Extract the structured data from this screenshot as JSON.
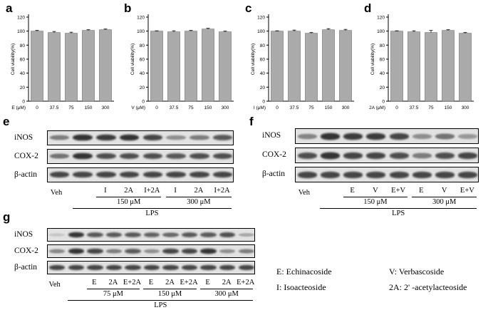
{
  "panels": {
    "a": "a",
    "b": "b",
    "c": "c",
    "d": "d",
    "e": "e",
    "f": "f",
    "g": "g"
  },
  "chart_data": [
    {
      "type": "bar",
      "ylabel": "Cell viability(%)",
      "xlabel": "E (μM)",
      "categories": [
        "0",
        "37.5",
        "75",
        "150",
        "300"
      ],
      "values": [
        100,
        98,
        97,
        101,
        102
      ],
      "errors": [
        1,
        1.5,
        1.5,
        1,
        1
      ],
      "yticks": [
        "0",
        "20",
        "40",
        "60",
        "80",
        "100",
        "120"
      ],
      "ylim": [
        0,
        120
      ]
    },
    {
      "type": "bar",
      "ylabel": "Cell viability(%)",
      "xlabel": "V (μM)",
      "categories": [
        "0",
        "37.5",
        "75",
        "150",
        "300"
      ],
      "values": [
        100,
        99,
        100,
        103,
        99
      ],
      "errors": [
        0.5,
        1.5,
        1,
        1,
        1
      ],
      "yticks": [
        "0",
        "20",
        "40",
        "60",
        "80",
        "100",
        "120"
      ],
      "ylim": [
        0,
        120
      ]
    },
    {
      "type": "bar",
      "ylabel": "Cell viability(%)",
      "xlabel": "I (μM)",
      "categories": [
        "0",
        "37.5",
        "75",
        "150",
        "300"
      ],
      "values": [
        100,
        100,
        97,
        102,
        101
      ],
      "errors": [
        0.5,
        1.5,
        1,
        1.5,
        1.5
      ],
      "yticks": [
        "0",
        "20",
        "40",
        "60",
        "80",
        "100",
        "120"
      ],
      "ylim": [
        0,
        120
      ]
    },
    {
      "type": "bar",
      "ylabel": "Cell viability(%)",
      "xlabel": "2A (μM)",
      "categories": [
        "0",
        "37.5",
        "75",
        "150",
        "300"
      ],
      "values": [
        100,
        99,
        98,
        101,
        97
      ],
      "errors": [
        0.5,
        1.5,
        3,
        1,
        1
      ],
      "yticks": [
        "0",
        "20",
        "40",
        "60",
        "80",
        "100",
        "120"
      ],
      "ylim": [
        0,
        120
      ]
    }
  ],
  "blots": {
    "e": {
      "rows": [
        "iNOS",
        "COX-2",
        "β-actin"
      ],
      "veh": "Veh",
      "lanes": [
        "I",
        "2A",
        "I+2A",
        "I",
        "2A",
        "I+2A"
      ],
      "groups": [
        "150 μM",
        "300 μM"
      ],
      "treatment": "LPS",
      "intensity": [
        [
          0.55,
          0.95,
          0.9,
          0.95,
          0.85,
          0.45,
          0.55,
          0.75
        ],
        [
          0.6,
          0.95,
          0.8,
          0.8,
          0.8,
          0.75,
          0.8,
          0.8
        ],
        [
          0.85,
          0.85,
          0.85,
          0.85,
          0.85,
          0.85,
          0.85,
          0.85
        ]
      ]
    },
    "f": {
      "rows": [
        "iNOS",
        "COX-2",
        "β-actin"
      ],
      "veh": "Veh",
      "lanes": [
        "E",
        "V",
        "E+V",
        "E",
        "V",
        "E+V"
      ],
      "groups": [
        "150 μM",
        "300 μM"
      ],
      "treatment": "LPS",
      "intensity": [
        [
          0.5,
          0.95,
          0.9,
          0.9,
          0.85,
          0.45,
          0.6,
          0.4
        ],
        [
          0.8,
          0.95,
          0.85,
          0.85,
          0.8,
          0.55,
          0.8,
          0.85
        ],
        [
          0.85,
          0.85,
          0.85,
          0.85,
          0.85,
          0.85,
          0.85,
          0.85
        ]
      ]
    },
    "g": {
      "rows": [
        "iNOS",
        "COX-2",
        "β-actin"
      ],
      "veh": "Veh",
      "lanes": [
        "E",
        "2A",
        "E+2A",
        "E",
        "2A",
        "E+2A",
        "E",
        "2A",
        "E+2A"
      ],
      "groups": [
        "75 μM",
        "150 μM",
        "300 μM"
      ],
      "treatment": "LPS",
      "intensity": [
        [
          0.15,
          0.95,
          0.75,
          0.75,
          0.75,
          0.7,
          0.65,
          0.75,
          0.75,
          0.8,
          0.3
        ],
        [
          0.5,
          0.95,
          0.85,
          0.55,
          0.75,
          0.45,
          0.85,
          0.85,
          0.95,
          0.45,
          0.55
        ],
        [
          0.85,
          0.85,
          0.85,
          0.85,
          0.85,
          0.85,
          0.85,
          0.85,
          0.85,
          0.85,
          0.85
        ]
      ]
    }
  },
  "legend": {
    "e": "E: Echinacoside",
    "v": "V: Verbascoside",
    "i": "I: Isoacteoside",
    "a": "2A: 2' -acetylacteoside"
  }
}
